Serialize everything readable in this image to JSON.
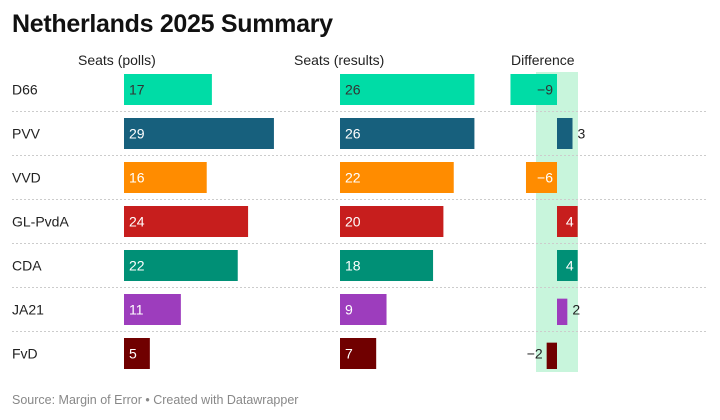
{
  "title": "Netherlands 2025 Summary",
  "source": "Source: Margin of Error • Created with Datawrapper",
  "chart_data": {
    "type": "bar",
    "title": "Netherlands 2025 Summary",
    "columns": [
      "Seats (polls)",
      "Seats (results)",
      "Difference"
    ],
    "categories": [
      "D66",
      "PVV",
      "VVD",
      "GL-PvdA",
      "CDA",
      "JA21",
      "FvD"
    ],
    "colors": [
      "#00dca6",
      "#17607d",
      "#ff8c00",
      "#c71e1d",
      "#009076",
      "#9d3dbd",
      "#700000"
    ],
    "series": [
      {
        "name": "Seats (polls)",
        "values": [
          17,
          29,
          16,
          24,
          22,
          11,
          5
        ]
      },
      {
        "name": "Seats (results)",
        "values": [
          26,
          26,
          22,
          20,
          18,
          9,
          7
        ]
      },
      {
        "name": "Difference",
        "values": [
          -9,
          3,
          -6,
          4,
          4,
          2,
          -2
        ]
      }
    ],
    "highlight_band_color": "#c8f5dc"
  }
}
